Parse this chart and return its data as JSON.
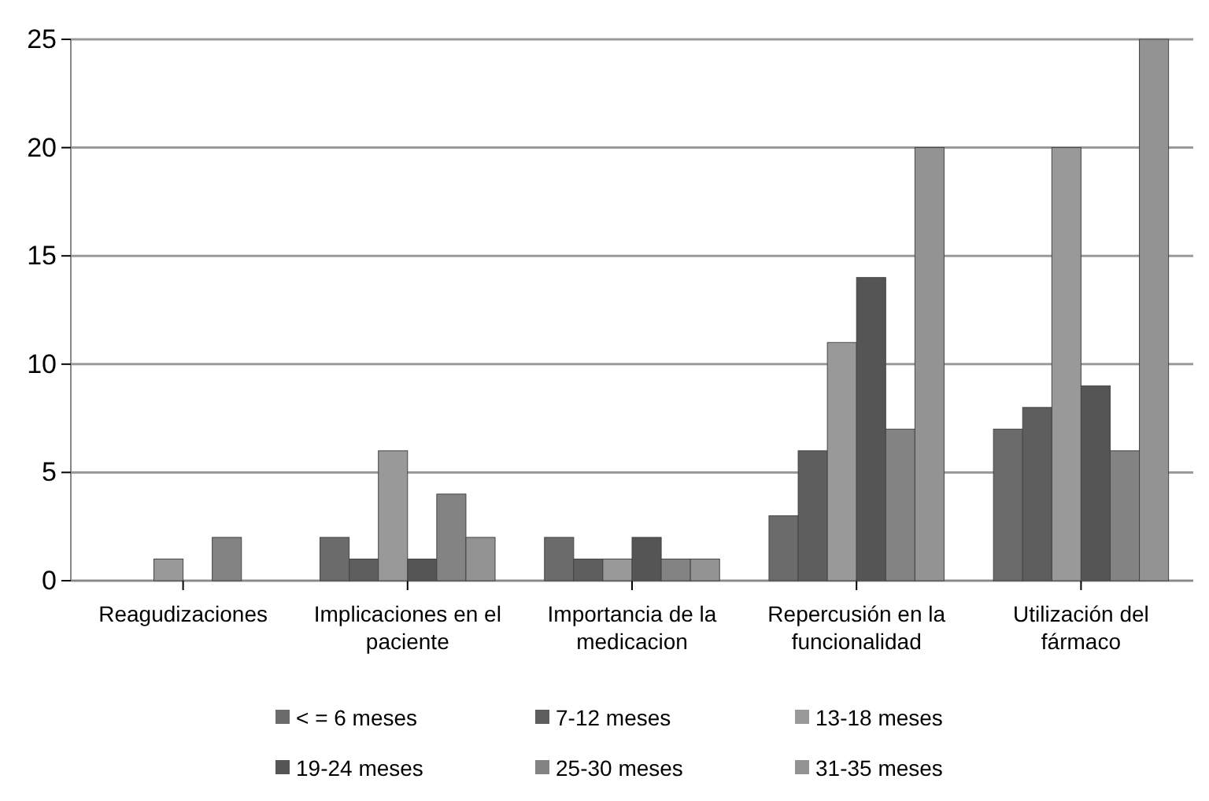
{
  "chart_data": {
    "type": "bar",
    "categories": [
      "Reagudizaciones",
      "Implicaciones en el paciente",
      "Importancia de la medicacion",
      "Repercusión en la funcionalidad",
      "Utilización del fármaco"
    ],
    "series": [
      {
        "name": "< = 6 meses",
        "color": "#6b6b6b",
        "values": [
          0,
          2,
          2,
          3,
          7
        ]
      },
      {
        "name": "7-12 meses",
        "color": "#5e5e5e",
        "values": [
          0,
          1,
          1,
          6,
          8
        ]
      },
      {
        "name": "13-18 meses",
        "color": "#999999",
        "values": [
          1,
          6,
          1,
          11,
          20
        ]
      },
      {
        "name": "19-24 meses",
        "color": "#555555",
        "values": [
          0,
          1,
          2,
          14,
          9
        ]
      },
      {
        "name": "25-30 meses",
        "color": "#838383",
        "values": [
          2,
          4,
          1,
          7,
          6
        ]
      },
      {
        "name": "31-35 meses",
        "color": "#939393",
        "values": [
          0,
          2,
          1,
          20,
          25
        ]
      }
    ],
    "ylim": [
      0,
      25
    ],
    "yticks": [
      0,
      5,
      10,
      15,
      20,
      25
    ],
    "grid": "y",
    "legend": "bottom"
  }
}
